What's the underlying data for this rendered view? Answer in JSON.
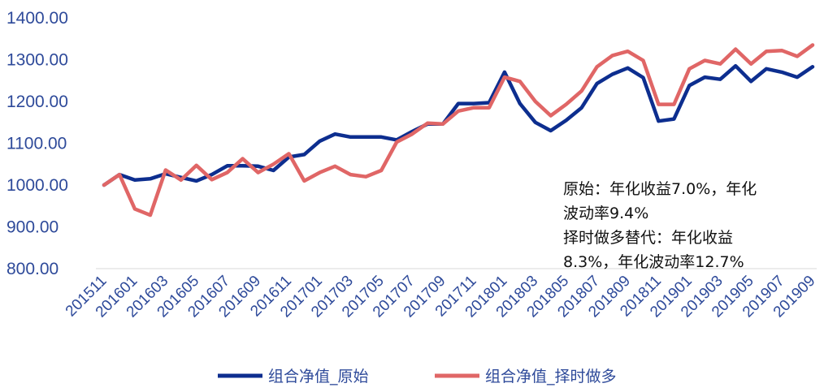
{
  "chart_data": {
    "type": "line",
    "ylim": [
      800,
      1400
    ],
    "yticks": [
      "800.00",
      "900.00",
      "1000.00",
      "1100.00",
      "1200.00",
      "1300.00",
      "1400.00"
    ],
    "x": [
      "201511",
      "201512",
      "201601",
      "201602",
      "201603",
      "201604",
      "201605",
      "201606",
      "201607",
      "201608",
      "201609",
      "201610",
      "201611",
      "201612",
      "201701",
      "201702",
      "201703",
      "201704",
      "201705",
      "201706",
      "201707",
      "201708",
      "201709",
      "201710",
      "201711",
      "201712",
      "201801",
      "201802",
      "201803",
      "201804",
      "201805",
      "201806",
      "201807",
      "201808",
      "201809",
      "201810",
      "201811",
      "201812",
      "201901",
      "201902",
      "201903",
      "201904",
      "201905",
      "201906",
      "201907",
      "201908",
      "201909"
    ],
    "xtick_labels": [
      "201511",
      "201601",
      "201603",
      "201605",
      "201607",
      "201609",
      "201611",
      "201701",
      "201703",
      "201705",
      "201707",
      "201709",
      "201711",
      "201801",
      "201803",
      "201805",
      "201807",
      "201809",
      "201811",
      "201901",
      "201903",
      "201905",
      "201907",
      "201909"
    ],
    "series": [
      {
        "name": "组合净值_原始",
        "color": "#0d2e8f",
        "values": [
          1000,
          1025,
          1012,
          1015,
          1027,
          1018,
          1010,
          1025,
          1046,
          1046,
          1045,
          1035,
          1067,
          1073,
          1105,
          1122,
          1115,
          1115,
          1115,
          1108,
          1128,
          1146,
          1146,
          1195,
          1195,
          1197,
          1270,
          1195,
          1150,
          1130,
          1155,
          1185,
          1243,
          1265,
          1280,
          1257,
          1153,
          1158,
          1238,
          1258,
          1253,
          1285,
          1248,
          1278,
          1270,
          1258,
          1283
        ]
      },
      {
        "name": "组合净值_择时做多",
        "color": "#e06666",
        "values": [
          1000,
          1025,
          943,
          928,
          1036,
          1012,
          1047,
          1013,
          1030,
          1063,
          1030,
          1050,
          1075,
          1010,
          1030,
          1045,
          1025,
          1020,
          1035,
          1103,
          1122,
          1148,
          1146,
          1177,
          1185,
          1185,
          1258,
          1248,
          1200,
          1166,
          1193,
          1225,
          1283,
          1310,
          1320,
          1298,
          1193,
          1193,
          1278,
          1298,
          1290,
          1325,
          1290,
          1320,
          1322,
          1308,
          1335
        ]
      }
    ]
  },
  "annotation": {
    "line1": "原始：年化收益7.0%，年化",
    "line2": "波动率9.4%",
    "line3": "择时做多替代：年化收益",
    "line4": "8.3%，年化波动率12.7%"
  }
}
